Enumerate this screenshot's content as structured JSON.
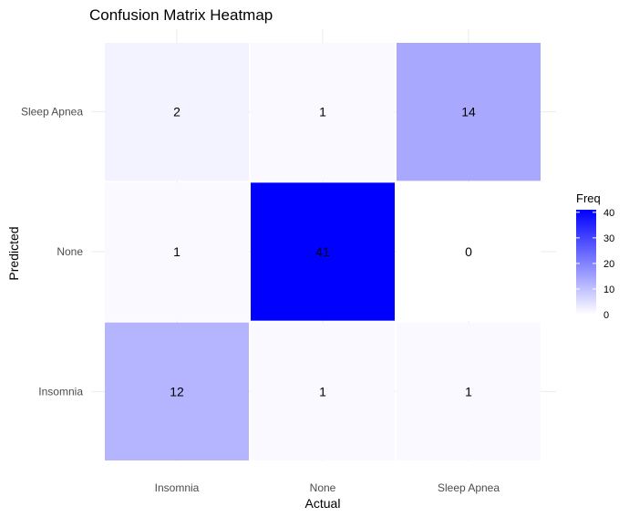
{
  "chart_data": {
    "type": "heatmap",
    "title": "Confusion Matrix Heatmap",
    "xlabel": "Actual",
    "ylabel": "Predicted",
    "x_categories": [
      "Insomnia",
      "None",
      "Sleep Apnea"
    ],
    "y_categories": [
      "Insomnia",
      "None",
      "Sleep Apnea"
    ],
    "cells": [
      {
        "actual": "Insomnia",
        "predicted": "Sleep Apnea",
        "value": 2
      },
      {
        "actual": "None",
        "predicted": "Sleep Apnea",
        "value": 1
      },
      {
        "actual": "Sleep Apnea",
        "predicted": "Sleep Apnea",
        "value": 14
      },
      {
        "actual": "Insomnia",
        "predicted": "None",
        "value": 1
      },
      {
        "actual": "None",
        "predicted": "None",
        "value": 41
      },
      {
        "actual": "Sleep Apnea",
        "predicted": "None",
        "value": 0
      },
      {
        "actual": "Insomnia",
        "predicted": "Insomnia",
        "value": 12
      },
      {
        "actual": "None",
        "predicted": "Insomnia",
        "value": 1
      },
      {
        "actual": "Sleep Apnea",
        "predicted": "Insomnia",
        "value": 1
      }
    ],
    "color_low": "#ffffff",
    "color_high": "#0000ff",
    "legend": {
      "title": "Freq",
      "ticks": [
        0,
        10,
        20,
        30,
        40
      ],
      "range": [
        0,
        41
      ],
      "placement": "right"
    },
    "grid": true
  }
}
